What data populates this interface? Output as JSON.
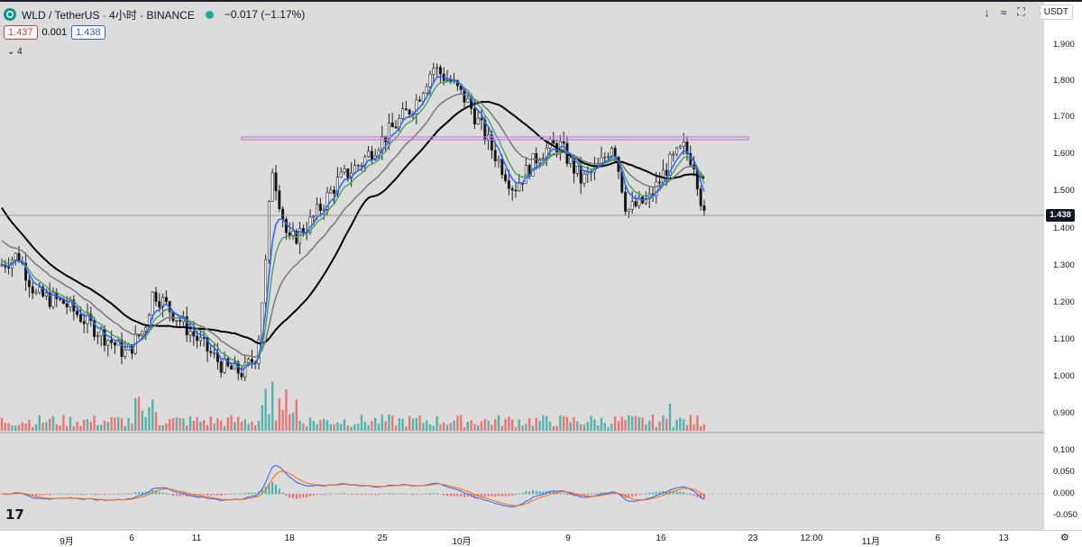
{
  "header": {
    "symbol": "WLD / TetherUS · 4小时 · BINANCE",
    "change": "−0.017 (−1.17%)"
  },
  "quotes": {
    "bid": "1.437",
    "spread": "0.001",
    "ask": "1.438"
  },
  "indicator_toggle": "4",
  "toolbar": {
    "currency": "USDT"
  },
  "last_price": "1.438",
  "price_axis": [
    "1.900",
    "1.800",
    "1.700",
    "1.600",
    "1.500",
    "1.400",
    "1.300",
    "1.200",
    "1.100",
    "1.000",
    "0.900"
  ],
  "macd_axis": [
    "0.100",
    "0.050",
    "0.000",
    "-0.050"
  ],
  "time_axis": [
    "9月",
    "6",
    "11",
    "18",
    "25",
    "10月",
    "9",
    "16",
    "23",
    "12:00",
    "11月",
    "6",
    "13"
  ],
  "colors": {
    "background": "#dcdcdc",
    "ma_fast": "#2962ff",
    "ma_green": "#43a047",
    "ma_gray": "#787878",
    "ma_black": "#000000",
    "resistance": "#c77ddb",
    "up": "#26a69a",
    "down": "#ef5350"
  },
  "icons": [
    "logo-icon",
    "market-open-dot-icon",
    "chevron-down-icon",
    "download-icon",
    "collapse-icon",
    "fullscreen-icon",
    "settings-icon"
  ]
}
